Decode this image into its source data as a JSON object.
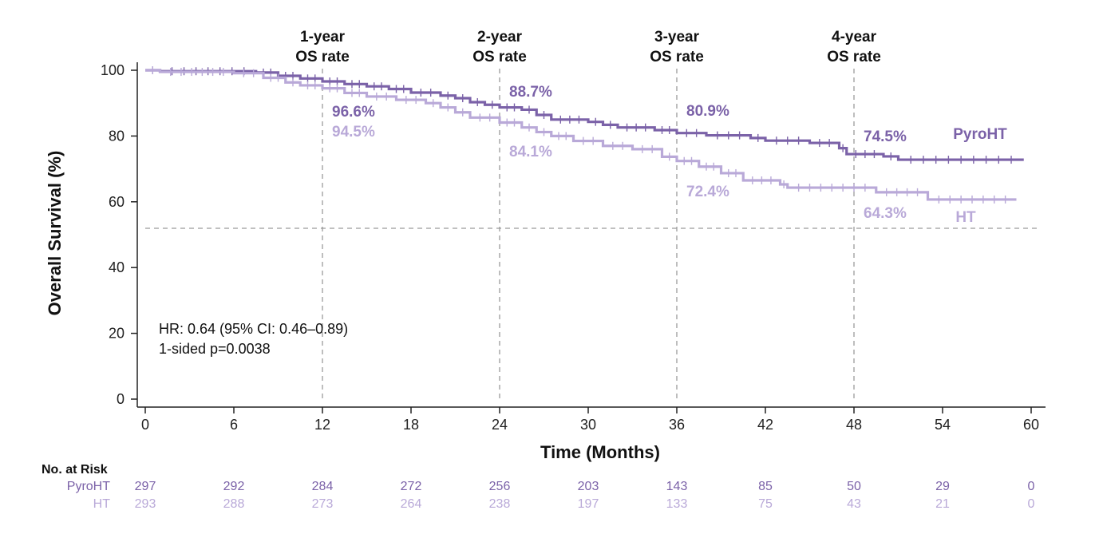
{
  "chart_data": {
    "type": "line",
    "ylabel": "Overall Survival (%)",
    "xlabel": "Time (Months)",
    "xlim": [
      0,
      60
    ],
    "ylim": [
      0,
      100
    ],
    "x_ticks": [
      0,
      6,
      12,
      18,
      24,
      30,
      36,
      42,
      48,
      54,
      60
    ],
    "y_ticks": [
      0,
      20,
      40,
      60,
      80,
      100
    ],
    "median_line_y": 50,
    "colors": {
      "pyro": "#7b62a8",
      "ht": "#b9a9d8"
    },
    "reference_lines": [
      {
        "x": 12,
        "label_line1": "1-year",
        "label_line2": "OS rate"
      },
      {
        "x": 24,
        "label_line1": "2-year",
        "label_line2": "OS rate"
      },
      {
        "x": 36,
        "label_line1": "3-year",
        "label_line2": "OS rate"
      },
      {
        "x": 48,
        "label_line1": "4-year",
        "label_line2": "OS rate"
      }
    ],
    "rate_labels": [
      {
        "series": "pyro",
        "x": 12,
        "text": "96.6%"
      },
      {
        "series": "ht",
        "x": 12,
        "text": "94.5%"
      },
      {
        "series": "pyro",
        "x": 24,
        "text": "88.7%"
      },
      {
        "series": "ht",
        "x": 24,
        "text": "84.1%"
      },
      {
        "series": "pyro",
        "x": 36,
        "text": "80.9%"
      },
      {
        "series": "ht",
        "x": 36,
        "text": "72.4%"
      },
      {
        "series": "pyro",
        "x": 48,
        "text": "74.5%"
      },
      {
        "series": "ht",
        "x": 48,
        "text": "64.3%"
      }
    ],
    "series": [
      {
        "name": "PyroHT",
        "key": "pyro",
        "steps": [
          [
            0,
            100
          ],
          [
            1,
            99.7
          ],
          [
            7.5,
            99.3
          ],
          [
            9,
            98.3
          ],
          [
            10.5,
            97.5
          ],
          [
            12,
            96.6
          ],
          [
            13.5,
            95.8
          ],
          [
            15,
            95.1
          ],
          [
            16.5,
            94.3
          ],
          [
            18,
            93.2
          ],
          [
            20,
            92.3
          ],
          [
            21,
            91.5
          ],
          [
            22,
            90.3
          ],
          [
            23,
            89.5
          ],
          [
            24,
            88.7
          ],
          [
            25.5,
            88.0
          ],
          [
            26.5,
            86.4
          ],
          [
            27.5,
            85.0
          ],
          [
            30,
            84.3
          ],
          [
            31,
            83.4
          ],
          [
            32,
            82.6
          ],
          [
            34.5,
            81.8
          ],
          [
            36,
            80.9
          ],
          [
            38,
            80.2
          ],
          [
            41,
            79.4
          ],
          [
            42,
            78.6
          ],
          [
            45,
            77.9
          ],
          [
            47,
            76.3
          ],
          [
            47.5,
            74.5
          ],
          [
            50,
            73.8
          ],
          [
            51,
            72.8
          ],
          [
            59.5,
            72.8
          ]
        ]
      },
      {
        "name": "HT",
        "key": "ht",
        "steps": [
          [
            0,
            100
          ],
          [
            1,
            99.5
          ],
          [
            6,
            99.1
          ],
          [
            8,
            97.7
          ],
          [
            9.5,
            96.3
          ],
          [
            10.5,
            95.4
          ],
          [
            12,
            94.5
          ],
          [
            13.5,
            93.1
          ],
          [
            15,
            92.0
          ],
          [
            17,
            91.0
          ],
          [
            19,
            90.0
          ],
          [
            20,
            88.7
          ],
          [
            21,
            87.2
          ],
          [
            22,
            85.6
          ],
          [
            24,
            84.1
          ],
          [
            25.5,
            82.6
          ],
          [
            26.5,
            81.2
          ],
          [
            27.5,
            80.0
          ],
          [
            29,
            78.5
          ],
          [
            31,
            77.0
          ],
          [
            33,
            76.0
          ],
          [
            35,
            73.7
          ],
          [
            36,
            72.4
          ],
          [
            37.5,
            70.7
          ],
          [
            39,
            68.7
          ],
          [
            40.5,
            66.5
          ],
          [
            43,
            65.3
          ],
          [
            43.5,
            64.3
          ],
          [
            49.5,
            62.9
          ],
          [
            53,
            60.7
          ],
          [
            59,
            60.7
          ]
        ]
      }
    ],
    "annotation_line1": "HR: 0.64 (95% CI: 0.46–0.89)",
    "annotation_line2": "1-sided p=0.0038"
  },
  "risk_table": {
    "title": "No. at Risk",
    "rows": [
      {
        "label": "PyroHT",
        "key": "pyro",
        "values": [
          297,
          292,
          284,
          272,
          256,
          203,
          143,
          85,
          50,
          29,
          0
        ]
      },
      {
        "label": "HT",
        "key": "ht",
        "values": [
          293,
          288,
          273,
          264,
          238,
          197,
          133,
          75,
          43,
          21,
          0
        ]
      }
    ]
  }
}
